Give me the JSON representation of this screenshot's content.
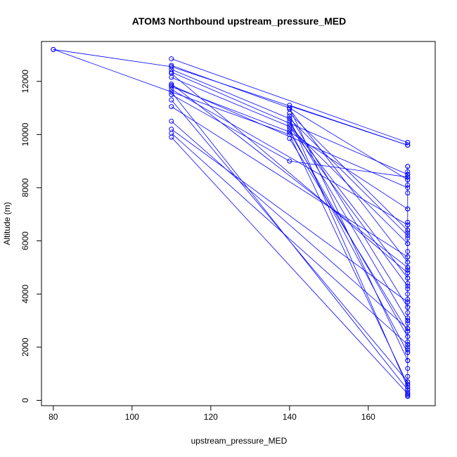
{
  "chart_data": {
    "type": "line",
    "title": "ATOM3 Northbound upstream_pressure_MED",
    "xlabel": "upstream_pressure_MED",
    "ylabel": "Altitude (m)",
    "xlim": [
      77,
      177
    ],
    "ylim": [
      -200,
      13500
    ],
    "x_ticks": [
      80,
      100,
      120,
      140,
      160
    ],
    "y_ticks": [
      0,
      2000,
      4000,
      6000,
      8000,
      10000,
      12000
    ],
    "line_color": "#0000ff",
    "marker": "open-circle",
    "grid": false,
    "series": [
      {
        "x": [
          80,
          110,
          170
        ],
        "y": [
          13200,
          12550,
          9600
        ]
      },
      {
        "x": [
          80,
          140,
          170
        ],
        "y": [
          13200,
          10000,
          600
        ]
      },
      {
        "x": [
          110,
          170
        ],
        "y": [
          12850,
          9700
        ]
      },
      {
        "x": [
          110,
          140,
          170
        ],
        "y": [
          12600,
          11000,
          8300
        ]
      },
      {
        "x": [
          110,
          140,
          170
        ],
        "y": [
          12450,
          10600,
          6200
        ]
      },
      {
        "x": [
          110,
          170
        ],
        "y": [
          12350,
          8500
        ]
      },
      {
        "x": [
          110,
          140,
          170
        ],
        "y": [
          12150,
          10300,
          4300
        ]
      },
      {
        "x": [
          110,
          170
        ],
        "y": [
          11850,
          8000
        ]
      },
      {
        "x": [
          110,
          140,
          170
        ],
        "y": [
          11800,
          10100,
          2400
        ]
      },
      {
        "x": [
          110,
          170
        ],
        "y": [
          11700,
          6600
        ]
      },
      {
        "x": [
          110,
          140,
          170
        ],
        "y": [
          11500,
          9000,
          8400
        ]
      },
      {
        "x": [
          110,
          170
        ],
        "y": [
          11050,
          5400
        ]
      },
      {
        "x": [
          110,
          170
        ],
        "y": [
          10500,
          2700
        ]
      },
      {
        "x": [
          110,
          170
        ],
        "y": [
          10200,
          3700
        ]
      },
      {
        "x": [
          110,
          170
        ],
        "y": [
          10050,
          2100
        ]
      },
      {
        "x": [
          110,
          170
        ],
        "y": [
          9900,
          250
        ]
      },
      {
        "x": [
          110,
          170
        ],
        "y": [
          11600,
          400
        ]
      },
      {
        "x": [
          110,
          170
        ],
        "y": [
          12300,
          4800
        ]
      },
      {
        "x": [
          110,
          170
        ],
        "y": [
          11900,
          5000
        ]
      },
      {
        "x": [
          110,
          170
        ],
        "y": [
          11300,
          700
        ]
      },
      {
        "x": [
          140,
          170
        ],
        "y": [
          11100,
          9600
        ]
      },
      {
        "x": [
          140,
          170
        ],
        "y": [
          10950,
          5200
        ]
      },
      {
        "x": [
          140,
          170
        ],
        "y": [
          10800,
          6400
        ]
      },
      {
        "x": [
          140,
          170
        ],
        "y": [
          10500,
          3000
        ]
      },
      {
        "x": [
          140,
          170
        ],
        "y": [
          10200,
          1800
        ]
      },
      {
        "x": [
          140,
          170
        ],
        "y": [
          9850,
          2600
        ]
      },
      {
        "x": [
          140,
          170
        ],
        "y": [
          10700,
          3500
        ]
      },
      {
        "x": [
          140,
          170
        ],
        "y": [
          10400,
          4600
        ]
      },
      {
        "x": [
          140,
          170
        ],
        "y": [
          10100,
          7200
        ]
      },
      {
        "x": [
          140,
          170
        ],
        "y": [
          10600,
          500
        ]
      },
      {
        "x": [
          140,
          170
        ],
        "y": [
          11000,
          1500
        ]
      },
      {
        "x": [
          140,
          170
        ],
        "y": [
          10300,
          5900
        ]
      },
      {
        "x": [
          170,
          170
        ],
        "y": [
          8800,
          150
        ]
      }
    ],
    "points_at_170": [
      9700,
      9600,
      8800,
      8600,
      8500,
      8400,
      8300,
      8100,
      7800,
      7200,
      6700,
      6600,
      6400,
      6300,
      6100,
      5900,
      5600,
      5400,
      5200,
      5000,
      4900,
      4800,
      4600,
      4400,
      4200,
      4000,
      3800,
      3700,
      3500,
      3300,
      3100,
      3000,
      2900,
      2700,
      2600,
      2400,
      2200,
      2100,
      2000,
      1900,
      1800,
      1500,
      1200,
      900,
      700,
      600,
      500,
      400,
      300,
      250,
      200,
      150
    ]
  }
}
